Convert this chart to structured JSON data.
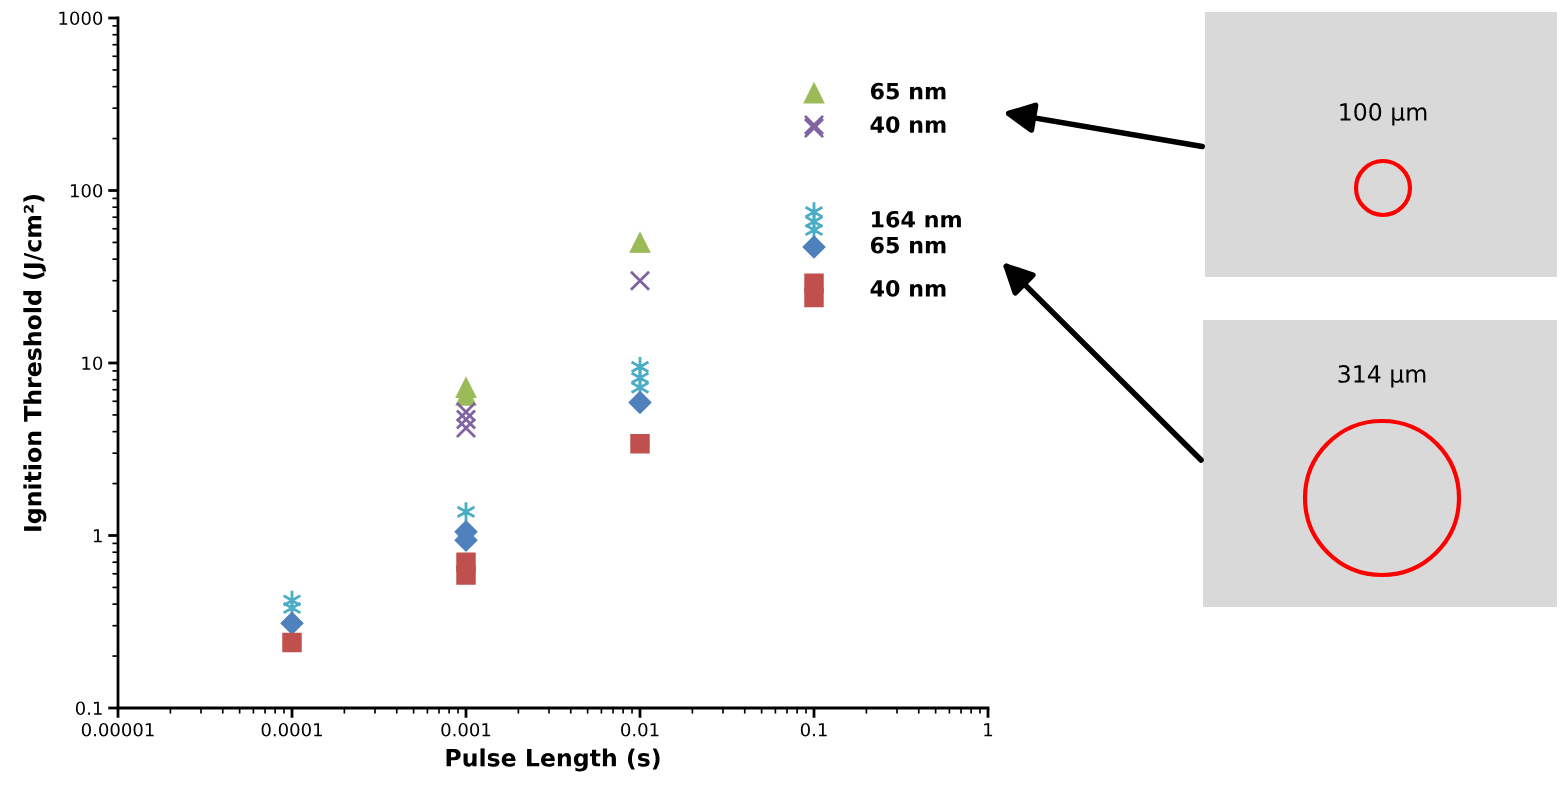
{
  "chart_data": {
    "type": "scatter",
    "xlabel": "Pulse Length (s)",
    "ylabel": "Ignition Threshold (J/cm²)",
    "log": "xy",
    "grid": false,
    "legend": false,
    "xlim": [
      1e-05,
      1
    ],
    "xticks": [
      {
        "value": 1e-05,
        "label": "0.00001"
      },
      {
        "value": 0.0001,
        "label": "0.0001"
      },
      {
        "value": 0.001,
        "label": "0.001"
      },
      {
        "value": 0.01,
        "label": "0.01"
      },
      {
        "value": 0.1,
        "label": "0.1"
      },
      {
        "value": 1,
        "label": "1"
      }
    ],
    "ylim": [
      0.1,
      1000
    ],
    "yticks": [
      {
        "value": 0.1,
        "label": "0.1"
      },
      {
        "value": 1,
        "label": "1"
      },
      {
        "value": 10,
        "label": "10"
      },
      {
        "value": 100,
        "label": "100"
      },
      {
        "value": 1000,
        "label": "1000"
      }
    ],
    "series": [
      {
        "name": "65 nm",
        "color": "#9bbb59",
        "marker": "triangle",
        "x": [
          0.001,
          0.001,
          0.01,
          0.1
        ],
        "values": [
          7.2,
          6.5,
          50,
          367
        ]
      },
      {
        "name": "40 nm",
        "color": "#8064a2",
        "marker": "cross",
        "x": [
          0.001,
          0.001,
          0.001,
          0.01,
          0.1,
          0.1
        ],
        "values": [
          5.2,
          4.7,
          4.2,
          30,
          240,
          230
        ]
      },
      {
        "name": "164 nm",
        "color": "#4bacc6",
        "x": [
          0.0001,
          0.0001,
          0.001,
          0.01,
          0.01,
          0.01,
          0.1,
          0.1,
          0.1
        ],
        "values": [
          0.42,
          0.38,
          1.37,
          9.5,
          8.2,
          7.2,
          75,
          66,
          59
        ]
      },
      {
        "name": "65 nm",
        "color": "#4f81bd",
        "marker": "diamond",
        "x": [
          0.0001,
          0.001,
          0.001,
          0.01,
          0.1
        ],
        "values": [
          0.31,
          1.05,
          0.94,
          5.9,
          47
        ]
      },
      {
        "name": "40 nm",
        "color": "#c0504d",
        "marker": "square",
        "x": [
          0.0001,
          0.001,
          0.001,
          0.01,
          0.1,
          0.1
        ],
        "values": [
          0.24,
          0.7,
          0.59,
          3.4,
          29,
          24
        ]
      }
    ],
    "annotations": [
      "100 µm",
      "314 µm"
    ]
  }
}
